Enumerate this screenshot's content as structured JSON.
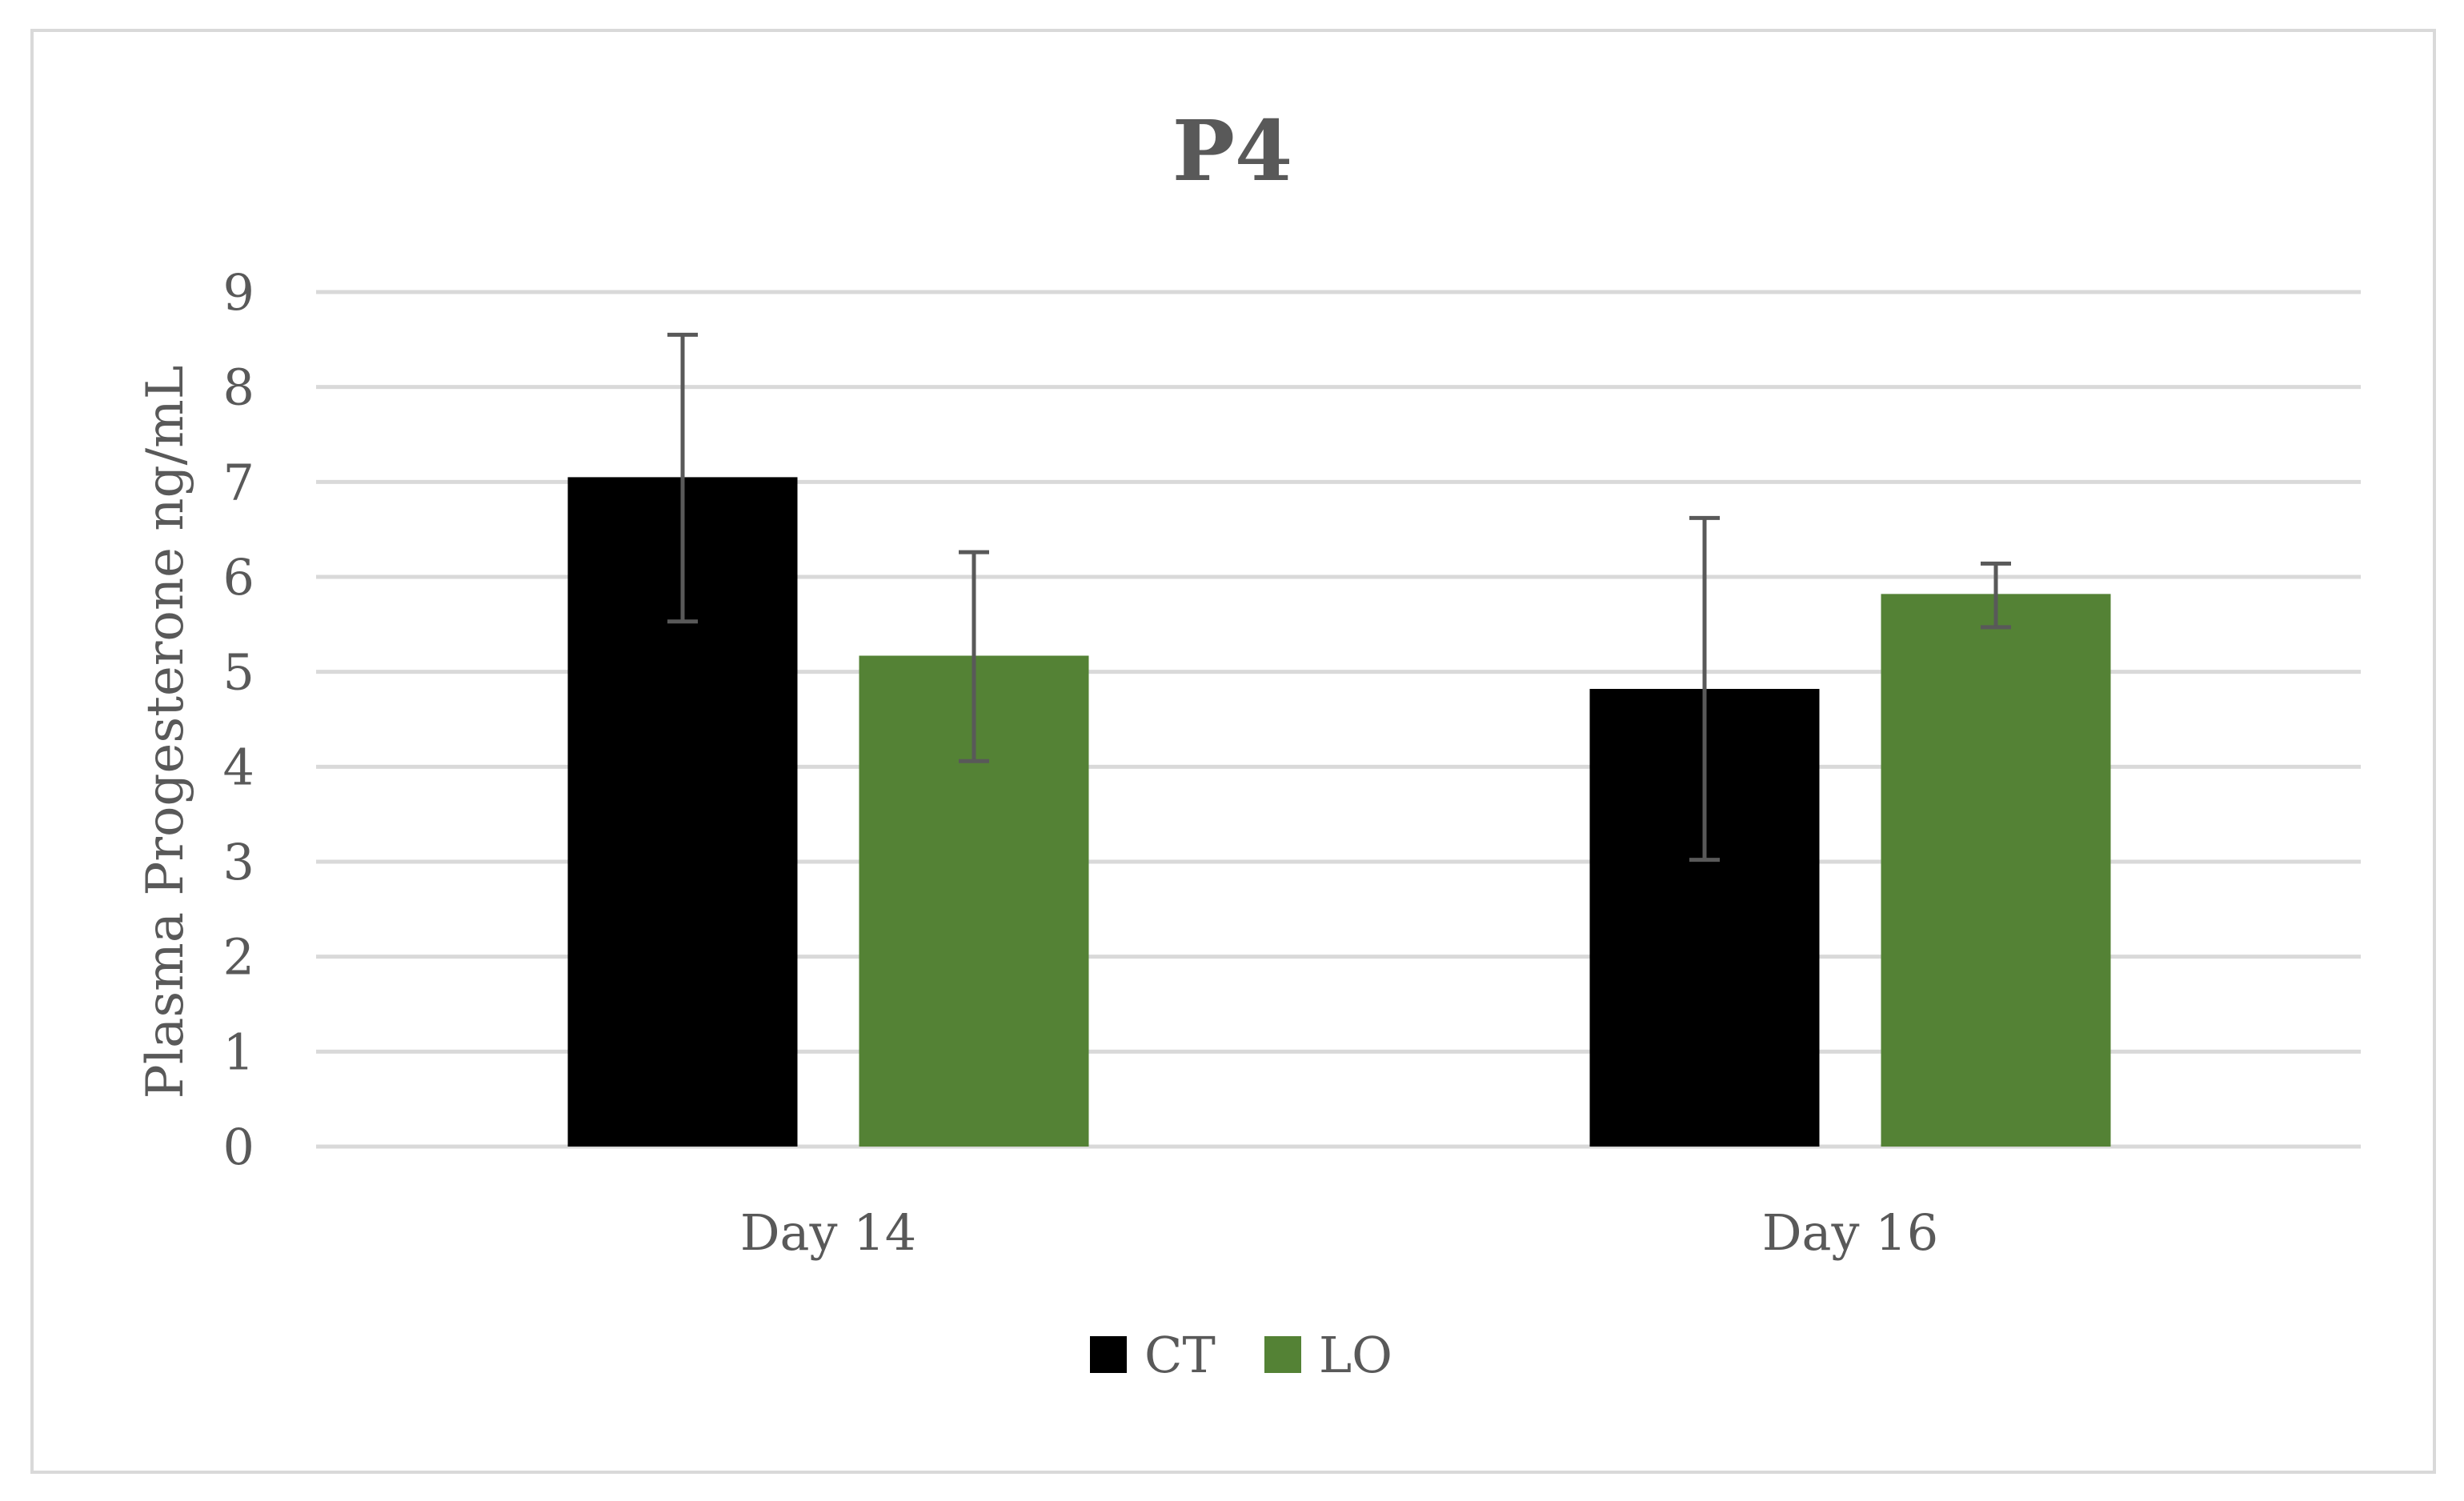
{
  "chart_data": {
    "type": "bar",
    "title": "P4",
    "xlabel": "",
    "ylabel": "Plasma Progesterone ng/mL",
    "categories": [
      "Day 14",
      "Day 16"
    ],
    "ylim": [
      0,
      9
    ],
    "yticks": [
      0,
      1,
      2,
      3,
      4,
      5,
      6,
      7,
      8,
      9
    ],
    "grid": true,
    "legend_position": "bottom",
    "series": [
      {
        "name": "CT",
        "color": "#000000",
        "values": [
          7.05,
          4.82
        ],
        "error_low": [
          5.53,
          3.02
        ],
        "error_high": [
          8.55,
          6.62
        ]
      },
      {
        "name": "LO",
        "color": "#548235",
        "values": [
          5.17,
          5.82
        ],
        "error_low": [
          4.06,
          5.47
        ],
        "error_high": [
          6.26,
          6.14
        ]
      }
    ]
  }
}
